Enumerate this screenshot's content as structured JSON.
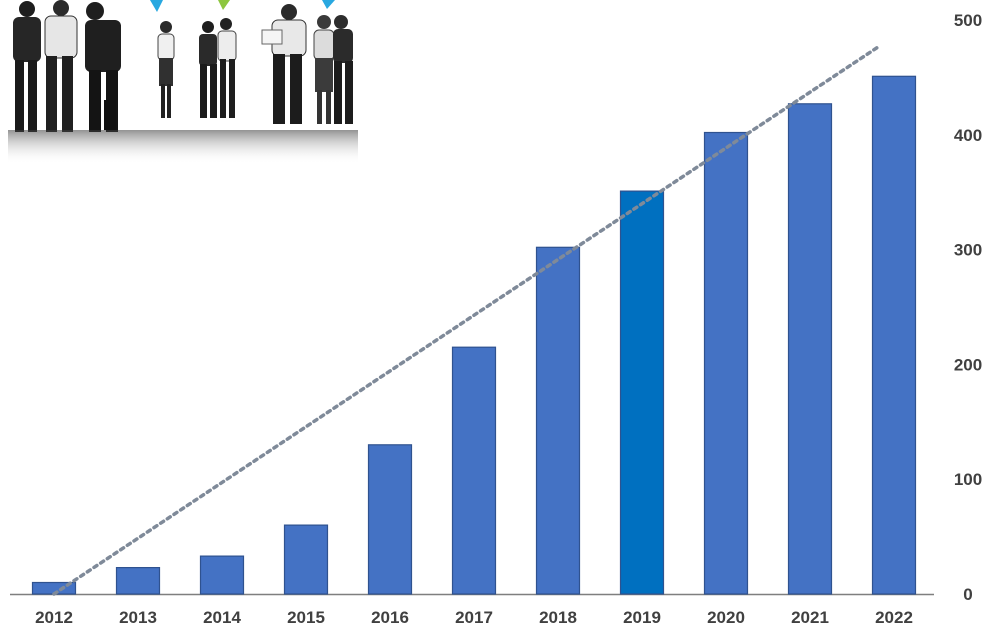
{
  "chart_data": {
    "type": "bar",
    "title": "",
    "xlabel": "",
    "ylabel": "",
    "categories": [
      "2012",
      "2013",
      "2014",
      "2015",
      "2016",
      "2017",
      "2018",
      "2019",
      "2020",
      "2021",
      "2022"
    ],
    "values": [
      10,
      23,
      33,
      60,
      130,
      215,
      302,
      351,
      402,
      427,
      451
    ],
    "ylim": [
      0,
      500
    ],
    "yticks": [
      0,
      100,
      200,
      300,
      400,
      500
    ],
    "y_axis_side": "right",
    "grid": false,
    "legend": "none",
    "trendline": {
      "style": "dotted",
      "from": [
        "2012",
        0
      ],
      "to": [
        "2022",
        477
      ]
    },
    "colors": {
      "bar": "#4472c4",
      "bar_highlight": "#0070c0",
      "bar_outline": "#2f528f",
      "trendline": "#7f8a99",
      "axis": "#7f7f7f",
      "text": "#404040"
    },
    "highlight_category": "2019"
  },
  "photo": {
    "icon": "business-people-photo"
  }
}
